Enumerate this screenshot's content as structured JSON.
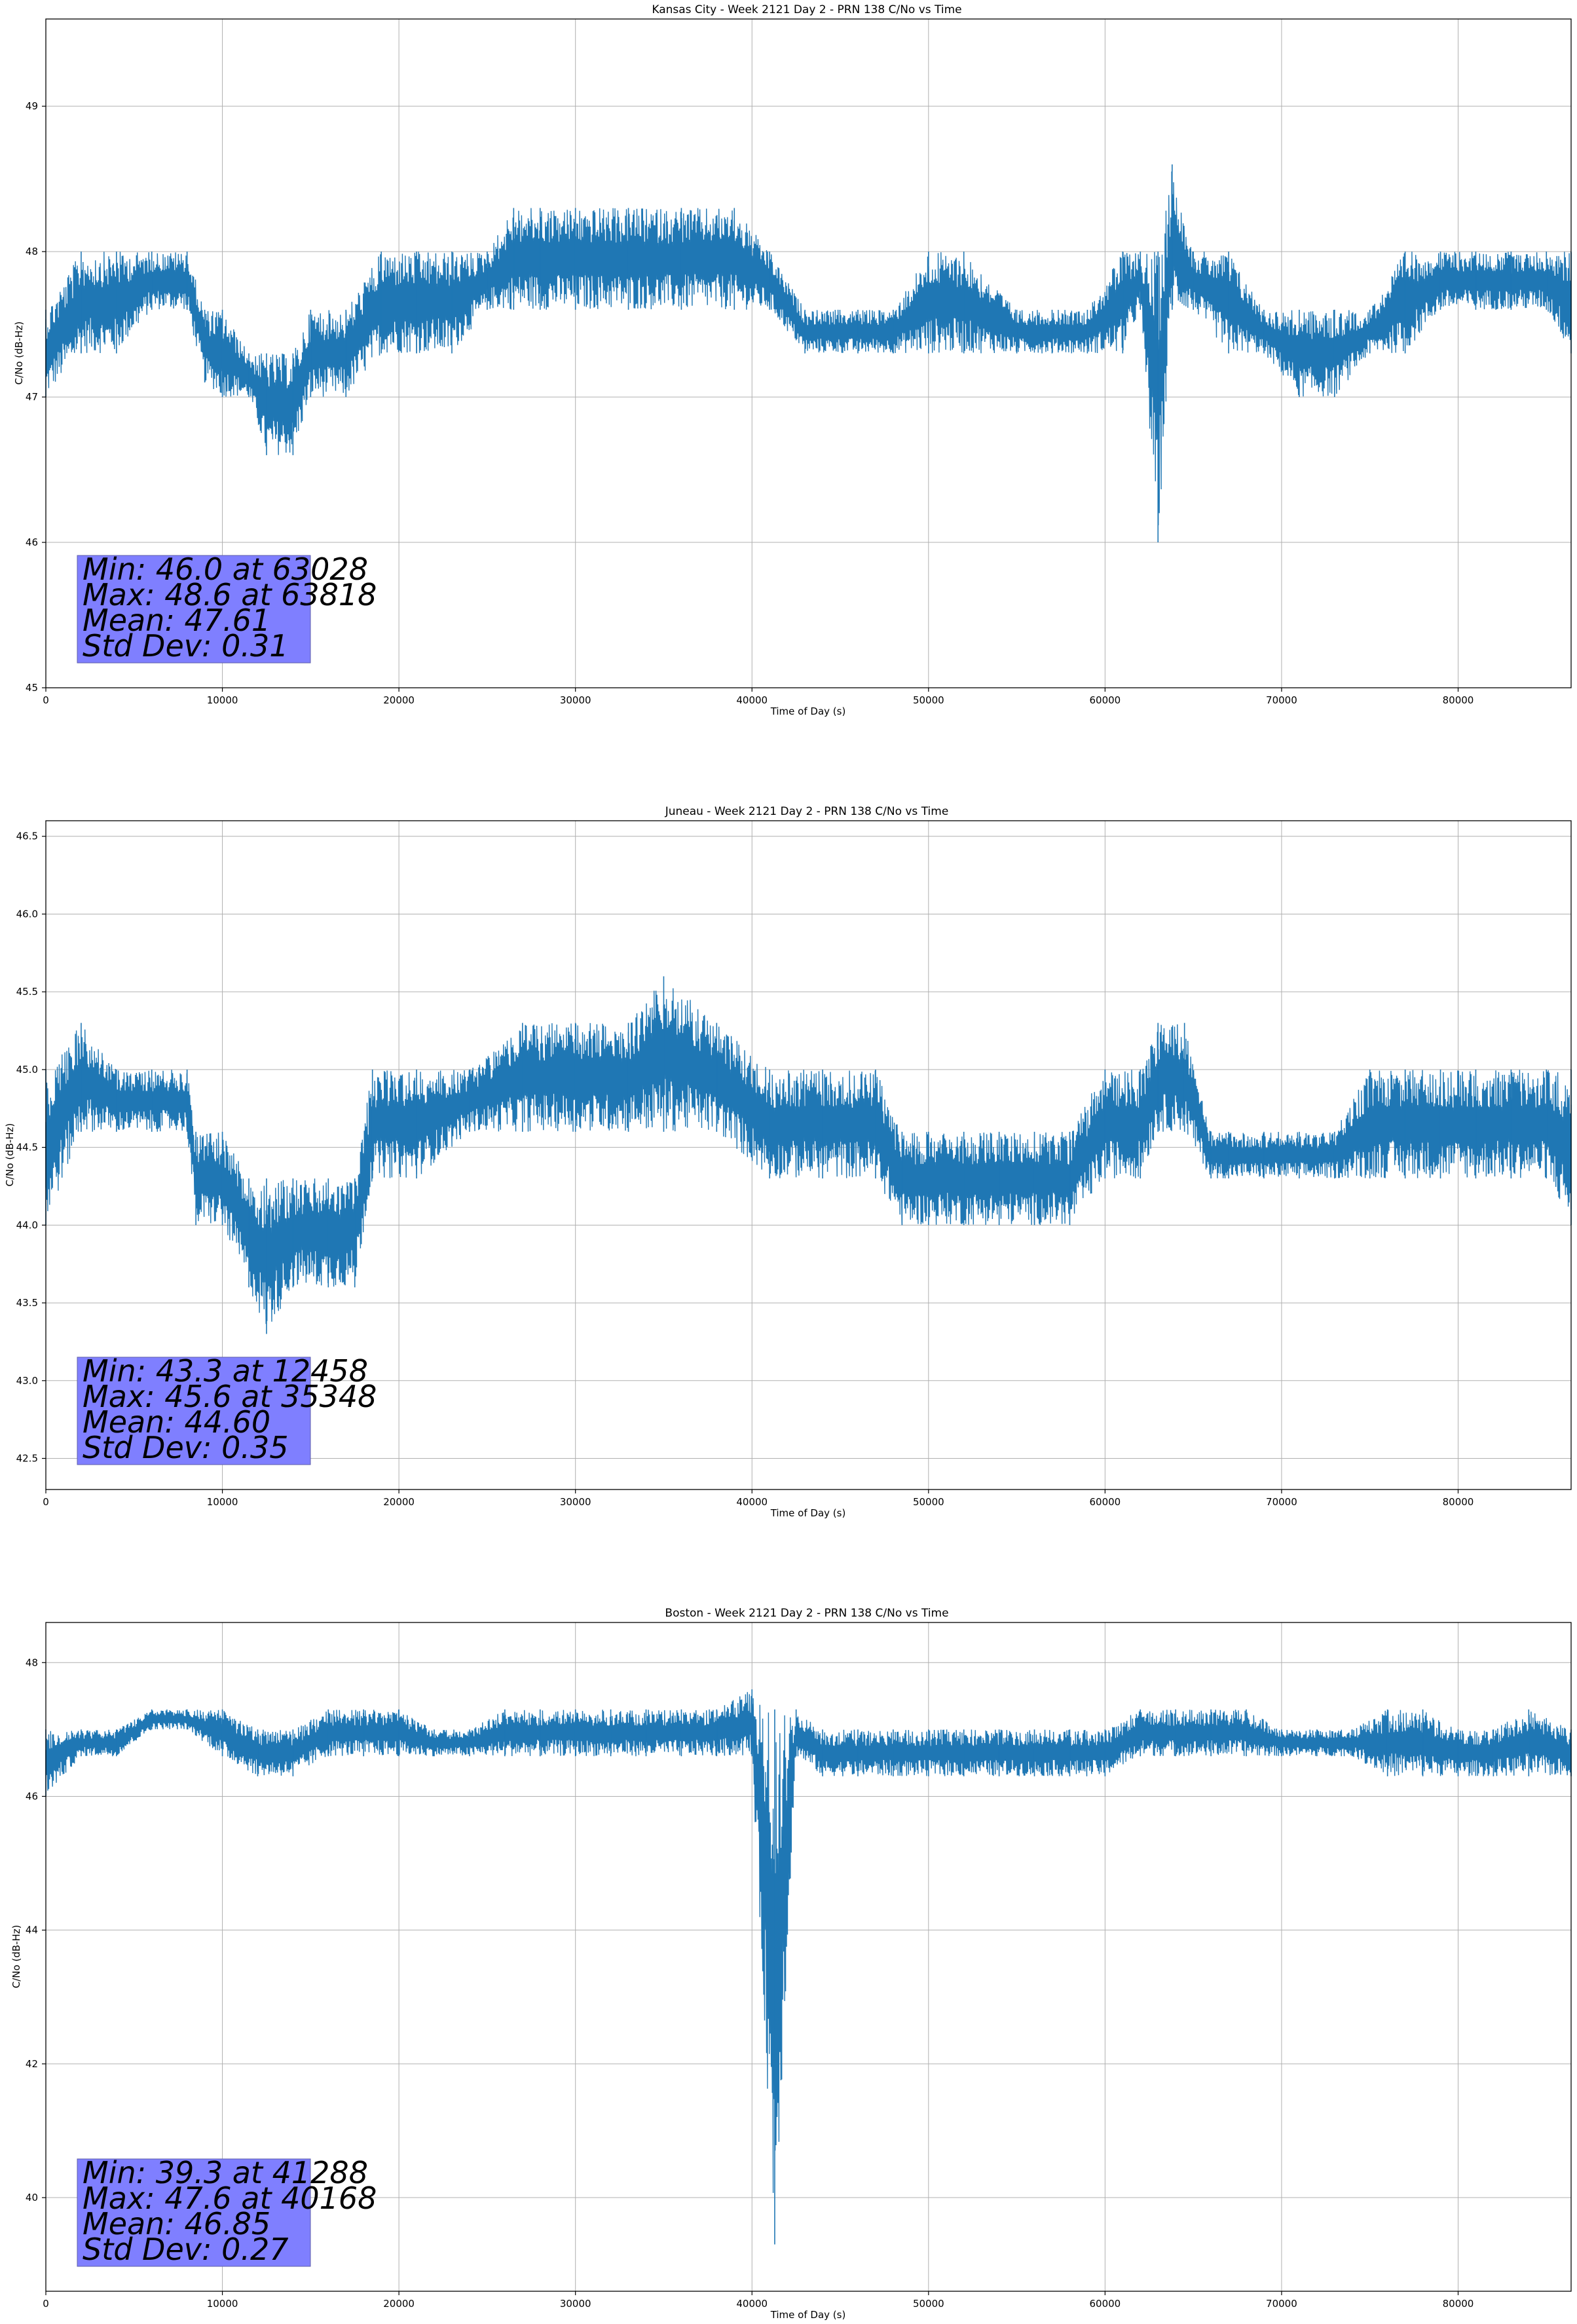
{
  "chart_data": [
    {
      "type": "line",
      "title": "Kansas City - Week 2121 Day 2 - PRN 138 C/No vs Time",
      "xlabel": "Time of Day (s)",
      "ylabel": "C/No (dB-Hz)",
      "xlim": [
        0,
        86400
      ],
      "ylim": [
        45,
        49.6
      ],
      "xticks": [
        0,
        10000,
        20000,
        30000,
        40000,
        50000,
        60000,
        70000,
        80000
      ],
      "xtick_labels": [
        "0",
        "10000",
        "20000",
        "30000",
        "40000",
        "50000",
        "60000",
        "70000",
        "80000"
      ],
      "yticks": [
        45,
        46,
        47,
        48,
        49
      ],
      "ytick_labels": [
        "45",
        "46",
        "47",
        "48",
        "49"
      ],
      "grid": true,
      "series_color": "#1f77b4",
      "series": [
        {
          "x": [
            0,
            2000,
            4000,
            6000,
            8000,
            9000,
            10000,
            11500,
            12500,
            14000,
            15000,
            17000,
            19000,
            21000,
            23000,
            25000,
            26500,
            28000,
            30000,
            33000,
            36000,
            39000,
            41000,
            43000,
            46000,
            48000,
            50000,
            52000,
            55000,
            57000,
            59000,
            61000,
            62000,
            63000,
            63800,
            65000,
            67000,
            69000,
            71000,
            73000,
            75000,
            77000,
            79000,
            81000,
            83000,
            85000,
            86400
          ],
          "low": [
            47.0,
            47.3,
            47.3,
            47.6,
            47.6,
            47.1,
            47.0,
            47.0,
            46.6,
            46.6,
            47.0,
            47.0,
            47.3,
            47.3,
            47.3,
            47.6,
            47.6,
            47.6,
            47.6,
            47.6,
            47.6,
            47.6,
            47.6,
            47.3,
            47.3,
            47.3,
            47.3,
            47.3,
            47.3,
            47.3,
            47.3,
            47.3,
            47.6,
            46.0,
            47.6,
            47.6,
            47.3,
            47.3,
            47.0,
            47.0,
            47.3,
            47.3,
            47.6,
            47.6,
            47.6,
            47.6,
            47.3
          ],
          "high": [
            47.6,
            48.0,
            48.0,
            48.0,
            48.0,
            47.6,
            47.6,
            47.3,
            47.3,
            47.3,
            47.6,
            47.6,
            48.0,
            48.0,
            48.0,
            48.0,
            48.3,
            48.3,
            48.3,
            48.3,
            48.3,
            48.3,
            48.0,
            47.6,
            47.6,
            47.6,
            48.0,
            48.0,
            47.6,
            47.6,
            47.6,
            48.0,
            48.0,
            48.0,
            48.6,
            48.0,
            48.0,
            47.6,
            47.6,
            47.6,
            47.6,
            48.0,
            48.0,
            48.0,
            48.0,
            48.0,
            48.0
          ]
        }
      ],
      "stats": {
        "min": "Min: 46.0 at 63028",
        "max": "Max: 48.6 at 63818",
        "mean": "Mean: 47.61",
        "std": "Std Dev: 0.31"
      }
    },
    {
      "type": "line",
      "title": "Juneau - Week 2121 Day 2 - PRN 138 C/No vs Time",
      "xlabel": "Time of Day (s)",
      "ylabel": "C/No (dB-Hz)",
      "xlim": [
        0,
        86400
      ],
      "ylim": [
        42.3,
        46.6
      ],
      "xticks": [
        0,
        10000,
        20000,
        30000,
        40000,
        50000,
        60000,
        70000,
        80000
      ],
      "xtick_labels": [
        "0",
        "10000",
        "20000",
        "30000",
        "40000",
        "50000",
        "60000",
        "70000",
        "80000"
      ],
      "yticks": [
        42.5,
        43.0,
        43.5,
        44.0,
        44.5,
        45.0,
        45.5,
        46.0,
        46.5
      ],
      "ytick_labels": [
        "42.5",
        "43.0",
        "43.5",
        "44.0",
        "44.5",
        "45.0",
        "45.5",
        "46.0",
        "46.5"
      ],
      "grid": true,
      "series_color": "#1f77b4",
      "series": [
        {
          "x": [
            0,
            2000,
            4000,
            6000,
            8000,
            8500,
            10000,
            11500,
            12500,
            14000,
            16000,
            17500,
            18500,
            21000,
            24000,
            27000,
            30000,
            33000,
            35000,
            38000,
            41000,
            44000,
            47000,
            48500,
            50000,
            52000,
            54000,
            56000,
            58000,
            60000,
            62000,
            63000,
            64500,
            66000,
            67000,
            69000,
            71000,
            73000,
            75000,
            77000,
            79000,
            81000,
            83000,
            85000,
            86400
          ],
          "low": [
            44.0,
            44.6,
            44.6,
            44.6,
            44.6,
            44.0,
            44.0,
            43.6,
            43.3,
            43.6,
            43.6,
            43.6,
            44.3,
            44.3,
            44.6,
            44.6,
            44.6,
            44.6,
            44.6,
            44.6,
            44.3,
            44.3,
            44.3,
            44.0,
            44.0,
            44.0,
            44.0,
            44.0,
            44.0,
            44.3,
            44.3,
            44.6,
            44.6,
            44.3,
            44.3,
            44.3,
            44.3,
            44.3,
            44.3,
            44.3,
            44.3,
            44.3,
            44.3,
            44.3,
            44.0
          ],
          "high": [
            45.0,
            45.3,
            45.0,
            45.0,
            45.0,
            44.6,
            44.6,
            44.3,
            44.3,
            44.3,
            44.3,
            44.3,
            45.0,
            45.0,
            45.0,
            45.3,
            45.3,
            45.3,
            45.6,
            45.3,
            45.0,
            45.0,
            45.0,
            44.6,
            44.6,
            44.6,
            44.6,
            44.6,
            44.6,
            45.0,
            45.0,
            45.3,
            45.3,
            44.6,
            44.6,
            44.6,
            44.6,
            44.6,
            45.0,
            45.0,
            45.0,
            45.0,
            45.0,
            45.0,
            45.0
          ]
        }
      ],
      "stats": {
        "min": "Min: 43.3 at 12458",
        "max": "Max: 45.6 at 35348",
        "mean": "Mean: 44.60",
        "std": "Std Dev: 0.35"
      }
    },
    {
      "type": "line",
      "title": "Boston - Week 2121 Day 2 - PRN 138 C/No vs Time",
      "xlabel": "Time of Day (s)",
      "ylabel": "C/No (dB-Hz)",
      "xlim": [
        0,
        86400
      ],
      "ylim": [
        38.6,
        48.6
      ],
      "xticks": [
        0,
        10000,
        20000,
        30000,
        40000,
        50000,
        60000,
        70000,
        80000
      ],
      "xtick_labels": [
        "0",
        "10000",
        "20000",
        "30000",
        "40000",
        "50000",
        "60000",
        "70000",
        "80000"
      ],
      "yticks": [
        40,
        42,
        44,
        46,
        48
      ],
      "ytick_labels": [
        "40",
        "42",
        "44",
        "46",
        "48"
      ],
      "grid": true,
      "series_color": "#1f77b4",
      "series": [
        {
          "x": [
            0,
            2000,
            4000,
            6000,
            8000,
            10000,
            12000,
            14000,
            16000,
            18000,
            20000,
            22000,
            24000,
            26000,
            28000,
            30000,
            32000,
            34000,
            36000,
            38000,
            40000,
            41288,
            42500,
            44000,
            46000,
            48000,
            50000,
            52000,
            54000,
            56000,
            58000,
            60000,
            62000,
            64000,
            66000,
            68000,
            70000,
            72000,
            74000,
            76000,
            78000,
            80000,
            82000,
            84000,
            86400
          ],
          "low": [
            46.0,
            46.6,
            46.6,
            47.0,
            47.0,
            46.6,
            46.3,
            46.3,
            46.6,
            46.6,
            46.6,
            46.6,
            46.6,
            46.6,
            46.6,
            46.6,
            46.6,
            46.6,
            46.6,
            46.6,
            46.6,
            39.3,
            46.6,
            46.3,
            46.3,
            46.3,
            46.3,
            46.3,
            46.3,
            46.3,
            46.3,
            46.3,
            46.6,
            46.6,
            46.6,
            46.6,
            46.6,
            46.6,
            46.6,
            46.3,
            46.3,
            46.3,
            46.3,
            46.3,
            46.3
          ],
          "high": [
            47.0,
            47.0,
            47.0,
            47.3,
            47.3,
            47.3,
            47.0,
            47.0,
            47.3,
            47.3,
            47.3,
            47.0,
            47.0,
            47.3,
            47.3,
            47.3,
            47.3,
            47.3,
            47.3,
            47.3,
            47.6,
            47.3,
            47.3,
            47.0,
            47.0,
            47.0,
            47.0,
            47.0,
            47.0,
            47.0,
            47.0,
            47.0,
            47.3,
            47.3,
            47.3,
            47.3,
            47.0,
            47.0,
            47.0,
            47.3,
            47.3,
            47.0,
            47.0,
            47.3,
            47.0
          ]
        }
      ],
      "stats": {
        "min": "Min: 39.3 at 41288",
        "max": "Max: 47.6 at 40168",
        "mean": "Mean: 46.85",
        "std": "Std Dev: 0.27"
      }
    }
  ]
}
